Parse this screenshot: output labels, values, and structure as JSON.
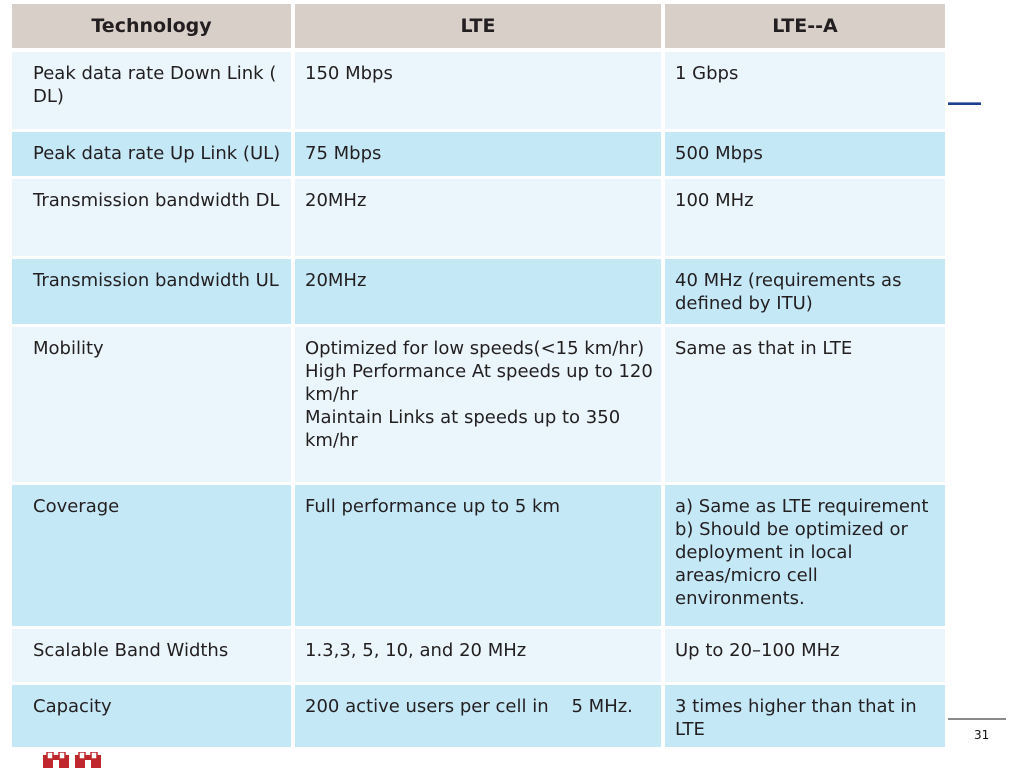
{
  "table": {
    "headers": [
      "Technology",
      "LTE",
      "LTE--A"
    ],
    "rows": [
      {
        "technology": [
          "Peak data rate Down Link ( DL)"
        ],
        "lte": [
          "150 Mbps"
        ],
        "lte_a": [
          "1 Gbps"
        ]
      },
      {
        "technology": [
          "Peak data rate Up Link (UL)"
        ],
        "lte": [
          "75 Mbps"
        ],
        "lte_a": [
          "500 Mbps"
        ]
      },
      {
        "technology": [
          "Transmission bandwidth DL"
        ],
        "lte": [
          "20MHz"
        ],
        "lte_a": [
          "100 MHz"
        ]
      },
      {
        "technology": [
          "Transmission bandwidth UL"
        ],
        "lte": [
          "20MHz"
        ],
        "lte_a": [
          "40 MHz (requirements as defined by ITU)"
        ]
      },
      {
        "technology": [
          "Mobility"
        ],
        "lte": [
          "Optimized for low speeds(<15 km/hr)",
          "High Performance At speeds up to 120 km/hr",
          "Maintain Links at speeds up to 350 km/hr"
        ],
        "lte_a": [
          "Same as that in LTE"
        ]
      },
      {
        "technology": [
          "Coverage"
        ],
        "lte": [
          "Full performance up to 5 km"
        ],
        "lte_a": [
          "a) Same as LTE requirement",
          "b) Should be optimized or deployment in local areas/micro cell environments."
        ]
      },
      {
        "technology": [
          "Scalable Band Widths"
        ],
        "lte": [
          "1.3,3, 5, 10, and 20 MHz"
        ],
        "lte_a": [
          "Up to 20–100 MHz"
        ]
      },
      {
        "technology": [
          "Capacity"
        ],
        "lte": [
          "200 active users per cell in    5 MHz."
        ],
        "lte_a": [
          "3 times higher than that in LTE"
        ]
      }
    ]
  },
  "footer": {
    "page_number": "31"
  },
  "decorations": {
    "logo_icon": "university-logo-icon",
    "accent_blue": "#1f3f8f",
    "logo_red": "#c0262d"
  }
}
